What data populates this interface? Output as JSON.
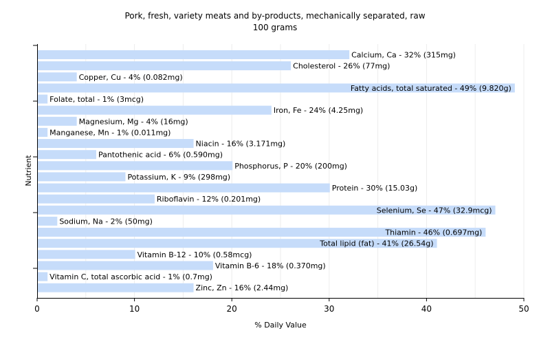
{
  "chart_data": {
    "type": "bar",
    "orientation": "horizontal",
    "title": "Pork, fresh, variety meats and by-products, mechanically separated, raw",
    "subtitle": "100 grams",
    "xlabel": "% Daily Value",
    "ylabel": "Nutrient",
    "xlim": [
      0,
      50
    ],
    "xticks": [
      0,
      10,
      20,
      30,
      40,
      50
    ],
    "grid": true,
    "bar_color": "#c6dcfa",
    "grid_color": "#ececec",
    "categories": [
      "Calcium, Ca",
      "Cholesterol",
      "Copper, Cu",
      "Fatty acids, total saturated",
      "Folate, total",
      "Iron, Fe",
      "Magnesium, Mg",
      "Manganese, Mn",
      "Niacin",
      "Pantothenic acid",
      "Phosphorus, P",
      "Potassium, K",
      "Protein",
      "Riboflavin",
      "Selenium, Se",
      "Sodium, Na",
      "Thiamin",
      "Total lipid (fat)",
      "Vitamin B-12",
      "Vitamin B-6",
      "Vitamin C, total ascorbic acid",
      "Zinc, Zn"
    ],
    "values": [
      32,
      26,
      4,
      49,
      1,
      24,
      4,
      1,
      16,
      6,
      20,
      9,
      30,
      12,
      47,
      2,
      46,
      41,
      10,
      18,
      1,
      16
    ],
    "labels": [
      "Calcium, Ca - 32% (315mg)",
      "Cholesterol - 26% (77mg)",
      "Copper, Cu - 4% (0.082mg)",
      "Fatty acids, total saturated - 49% (9.820g)",
      "Folate, total - 1% (3mcg)",
      "Iron, Fe - 24% (4.25mg)",
      "Magnesium, Mg - 4% (16mg)",
      "Manganese, Mn - 1% (0.011mg)",
      "Niacin - 16% (3.171mg)",
      "Pantothenic acid - 6% (0.590mg)",
      "Phosphorus, P - 20% (200mg)",
      "Potassium, K - 9% (298mg)",
      "Protein - 30% (15.03g)",
      "Riboflavin - 12% (0.201mg)",
      "Selenium, Se - 47% (32.9mcg)",
      "Sodium, Na - 2% (50mg)",
      "Thiamin - 46% (0.697mg)",
      "Total lipid (fat) - 41% (26.54g)",
      "Vitamin B-12 - 10% (0.58mcg)",
      "Vitamin B-6 - 18% (0.370mg)",
      "Vitamin C, total ascorbic acid - 1% (0.7mg)",
      "Zinc, Zn - 16% (2.44mg)"
    ]
  }
}
